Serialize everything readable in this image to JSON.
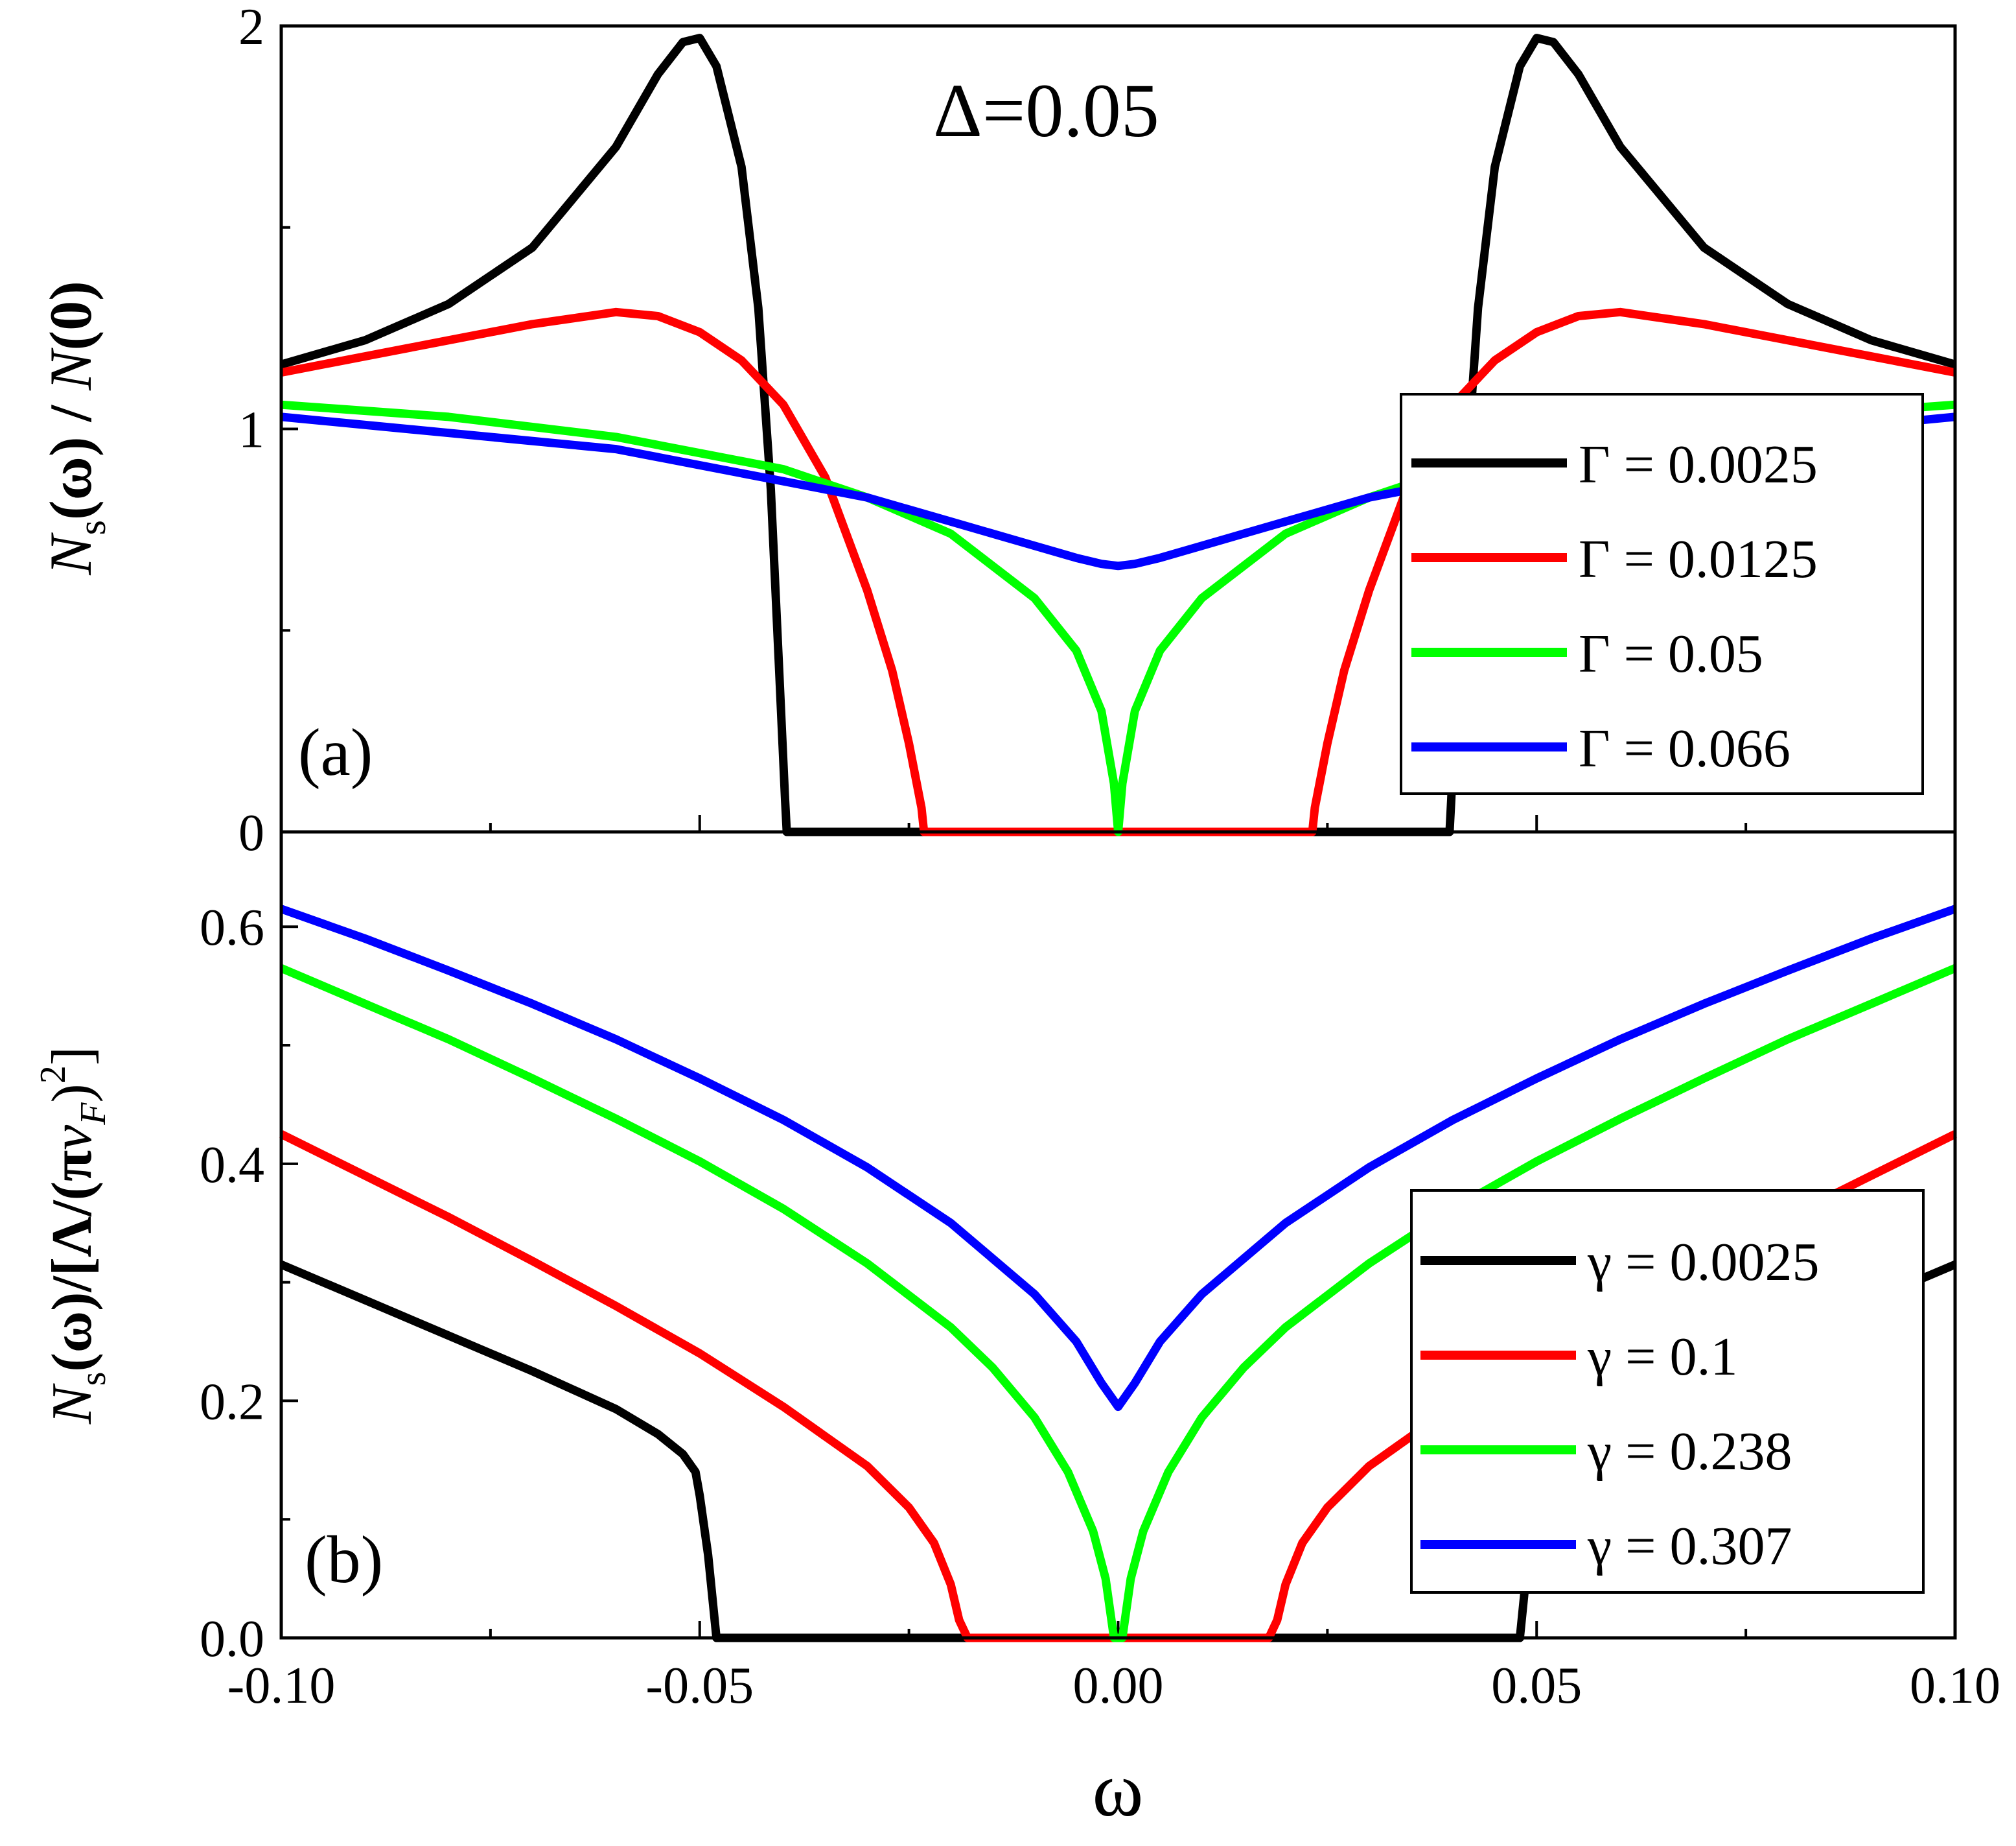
{
  "chart_data": [
    {
      "type": "line",
      "panel_label": "(a)",
      "annotation": "Δ=0.05",
      "ylabel": "N_s(ω) / N(0)",
      "ylabel_parts": {
        "n": "N",
        "sub": "s",
        "mid": "(ω) / ",
        "n2": "N",
        "end": "(0)"
      },
      "xlim": [
        -0.1,
        0.1
      ],
      "ylim": [
        0,
        2
      ],
      "yticks": [
        0,
        1,
        2
      ],
      "yticklabels": [
        "0",
        "1",
        "2"
      ],
      "legend_position": "center-right",
      "series": [
        {
          "name": "Γ = 0.0025",
          "color": "#000000",
          "x": [
            -0.1,
            -0.09,
            -0.08,
            -0.07,
            -0.06,
            -0.055,
            -0.052,
            -0.05,
            -0.048,
            -0.045,
            -0.043,
            -0.0415,
            -0.0405,
            -0.0398,
            -0.0396,
            0.0396,
            0.0398,
            0.0405,
            0.0415,
            0.043,
            0.045,
            0.048,
            0.05,
            0.052,
            0.055,
            0.06,
            0.07,
            0.08,
            0.09,
            0.1
          ],
          "y": [
            1.16,
            1.22,
            1.31,
            1.45,
            1.7,
            1.88,
            1.96,
            1.97,
            1.9,
            1.65,
            1.3,
            0.85,
            0.4,
            0.08,
            0.0,
            0.0,
            0.08,
            0.4,
            0.85,
            1.3,
            1.65,
            1.9,
            1.97,
            1.96,
            1.88,
            1.7,
            1.45,
            1.31,
            1.22,
            1.16
          ]
        },
        {
          "name": "Γ = 0.0125",
          "color": "#ff0000",
          "x": [
            -0.1,
            -0.09,
            -0.08,
            -0.07,
            -0.06,
            -0.055,
            -0.05,
            -0.045,
            -0.04,
            -0.035,
            -0.03,
            -0.027,
            -0.025,
            -0.0235,
            -0.0232,
            0.0232,
            0.0235,
            0.025,
            0.027,
            0.03,
            0.035,
            0.04,
            0.045,
            0.05,
            0.055,
            0.06,
            0.07,
            0.08,
            0.09,
            0.1
          ],
          "y": [
            1.14,
            1.18,
            1.22,
            1.26,
            1.29,
            1.28,
            1.24,
            1.17,
            1.06,
            0.88,
            0.6,
            0.4,
            0.22,
            0.06,
            0.0,
            0.0,
            0.06,
            0.22,
            0.4,
            0.6,
            0.88,
            1.06,
            1.17,
            1.24,
            1.28,
            1.29,
            1.26,
            1.22,
            1.18,
            1.14
          ]
        },
        {
          "name": "Γ = 0.05",
          "color": "#00ff00",
          "x": [
            -0.1,
            -0.08,
            -0.06,
            -0.04,
            -0.03,
            -0.02,
            -0.01,
            -0.005,
            -0.002,
            -0.0005,
            0.0,
            0.0005,
            0.002,
            0.005,
            0.01,
            0.02,
            0.03,
            0.04,
            0.06,
            0.08,
            0.1
          ],
          "y": [
            1.06,
            1.03,
            0.98,
            0.9,
            0.83,
            0.74,
            0.58,
            0.45,
            0.3,
            0.12,
            0.0,
            0.12,
            0.3,
            0.45,
            0.58,
            0.74,
            0.83,
            0.9,
            0.98,
            1.03,
            1.06
          ]
        },
        {
          "name": "Γ = 0.066",
          "color": "#0000ff",
          "x": [
            -0.1,
            -0.08,
            -0.06,
            -0.04,
            -0.03,
            -0.02,
            -0.01,
            -0.005,
            -0.002,
            0.0,
            0.002,
            0.005,
            0.01,
            0.02,
            0.03,
            0.04,
            0.06,
            0.08,
            0.1
          ],
          "y": [
            1.03,
            0.99,
            0.95,
            0.87,
            0.83,
            0.77,
            0.71,
            0.68,
            0.665,
            0.66,
            0.665,
            0.68,
            0.71,
            0.77,
            0.83,
            0.87,
            0.95,
            0.99,
            1.03
          ]
        }
      ]
    },
    {
      "type": "line",
      "panel_label": "(b)",
      "xlabel": "ω",
      "ylabel": "N_s(ω)/[Λ/(πv_F)^2]",
      "ylabel_parts": {
        "n": "N",
        "sub": "s",
        "mid": "(ω)/[Λ/(π",
        "v": "v",
        "vsub": "F",
        "end": ")",
        "sup": "2",
        "close": "]"
      },
      "xlim": [
        -0.1,
        0.1
      ],
      "ylim": [
        0,
        0.68
      ],
      "xticks": [
        -0.1,
        -0.05,
        0.0,
        0.05,
        0.1
      ],
      "xticklabels": [
        "-0.10",
        "-0.05",
        "0.00",
        "0.05",
        "0.10"
      ],
      "yticks": [
        0.0,
        0.2,
        0.4,
        0.6
      ],
      "yticklabels": [
        "0.0",
        "0.2",
        "0.4",
        "0.6"
      ],
      "legend_position": "lower-right",
      "series": [
        {
          "name": "γ = 0.0025",
          "color": "#000000",
          "x": [
            -0.1,
            -0.09,
            -0.08,
            -0.07,
            -0.06,
            -0.055,
            -0.052,
            -0.0505,
            -0.05,
            -0.049,
            -0.048,
            -0.047,
            -0.04,
            -0.036,
            0.036,
            0.04,
            0.047,
            0.048,
            0.049,
            0.05,
            0.0505,
            0.052,
            0.055,
            0.06,
            0.07,
            0.08,
            0.09,
            0.1
          ],
          "y": [
            0.315,
            0.285,
            0.255,
            0.225,
            0.193,
            0.172,
            0.155,
            0.14,
            0.12,
            0.07,
            0.0,
            0.0,
            0.0,
            0.0,
            0.0,
            0.0,
            0.0,
            0.0,
            0.07,
            0.12,
            0.14,
            0.155,
            0.172,
            0.193,
            0.225,
            0.255,
            0.285,
            0.315
          ]
        },
        {
          "name": "γ = 0.1",
          "color": "#ff0000",
          "x": [
            -0.1,
            -0.09,
            -0.08,
            -0.07,
            -0.06,
            -0.05,
            -0.04,
            -0.03,
            -0.025,
            -0.022,
            -0.02,
            -0.019,
            -0.018,
            -0.004,
            0.004,
            0.018,
            0.019,
            0.02,
            0.022,
            0.025,
            0.03,
            0.04,
            0.05,
            0.06,
            0.07,
            0.08,
            0.09,
            0.1
          ],
          "y": [
            0.425,
            0.39,
            0.355,
            0.318,
            0.28,
            0.24,
            0.195,
            0.145,
            0.11,
            0.08,
            0.045,
            0.015,
            0.0,
            0.0,
            0.0,
            0.0,
            0.015,
            0.045,
            0.08,
            0.11,
            0.145,
            0.195,
            0.24,
            0.28,
            0.318,
            0.355,
            0.39,
            0.425
          ]
        },
        {
          "name": "γ = 0.238",
          "color": "#00ff00",
          "x": [
            -0.1,
            -0.09,
            -0.08,
            -0.07,
            -0.06,
            -0.05,
            -0.04,
            -0.03,
            -0.02,
            -0.015,
            -0.01,
            -0.006,
            -0.003,
            -0.0015,
            -0.0005,
            0.0005,
            0.0015,
            0.003,
            0.006,
            0.01,
            0.015,
            0.02,
            0.03,
            0.04,
            0.05,
            0.06,
            0.07,
            0.08,
            0.09,
            0.1
          ],
          "y": [
            0.565,
            0.535,
            0.505,
            0.472,
            0.438,
            0.402,
            0.362,
            0.316,
            0.262,
            0.228,
            0.186,
            0.14,
            0.09,
            0.05,
            0.0,
            0.0,
            0.05,
            0.09,
            0.14,
            0.186,
            0.228,
            0.262,
            0.316,
            0.362,
            0.402,
            0.438,
            0.472,
            0.505,
            0.535,
            0.565
          ]
        },
        {
          "name": "γ = 0.307",
          "color": "#0000ff",
          "x": [
            -0.1,
            -0.09,
            -0.08,
            -0.07,
            -0.06,
            -0.05,
            -0.04,
            -0.03,
            -0.02,
            -0.01,
            -0.005,
            -0.002,
            0.0,
            0.002,
            0.005,
            0.01,
            0.02,
            0.03,
            0.04,
            0.05,
            0.06,
            0.07,
            0.08,
            0.09,
            0.1
          ],
          "y": [
            0.615,
            0.59,
            0.563,
            0.535,
            0.505,
            0.472,
            0.437,
            0.397,
            0.35,
            0.29,
            0.25,
            0.215,
            0.195,
            0.215,
            0.25,
            0.29,
            0.35,
            0.397,
            0.437,
            0.472,
            0.505,
            0.535,
            0.563,
            0.59,
            0.615
          ]
        }
      ]
    }
  ]
}
